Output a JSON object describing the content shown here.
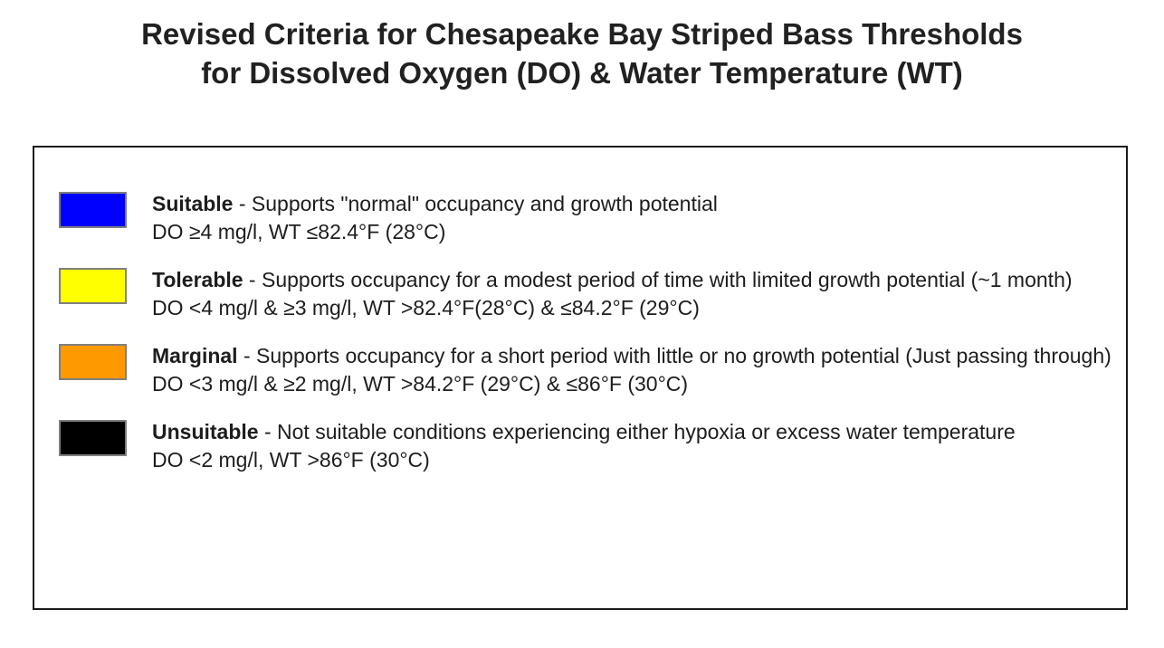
{
  "title": {
    "line1": "Revised Criteria for Chesapeake Bay Striped Bass Thresholds",
    "line2": "for Dissolved Oxygen (DO) & Water Temperature (WT)"
  },
  "legend": {
    "items": [
      {
        "term": "Suitable",
        "description": " - Supports \"normal\" occupancy and growth potential",
        "criteria": "DO ≥4 mg/l, WT ≤82.4°F (28°C)",
        "color": "#0000ff",
        "color_name": "blue"
      },
      {
        "term": "Tolerable",
        "description": " - Supports occupancy for a modest period of time with limited growth potential (~1 month)",
        "criteria": "DO <4 mg/l & ≥3 mg/l, WT >82.4°F(28°C) & ≤84.2°F (29°C)",
        "color": "#ffff00",
        "color_name": "yellow"
      },
      {
        "term": "Marginal",
        "description": " - Supports occupancy for a short period with little or no growth potential (Just passing through)",
        "criteria": "DO <3 mg/l & ≥2 mg/l, WT >84.2°F (29°C) & ≤86°F (30°C)",
        "color": "#ff9900",
        "color_name": "orange"
      },
      {
        "term": "Unsuitable",
        "description": " - Not suitable conditions experiencing either hypoxia or excess water temperature",
        "criteria": "DO <2 mg/l, WT >86°F (30°C)",
        "color": "#000000",
        "color_name": "black"
      }
    ]
  },
  "colors": {
    "box_border": "#1a1a1a",
    "swatch_border": "#7f7f7f",
    "title_text": "#212121",
    "body_text": "#1d1d1d"
  }
}
